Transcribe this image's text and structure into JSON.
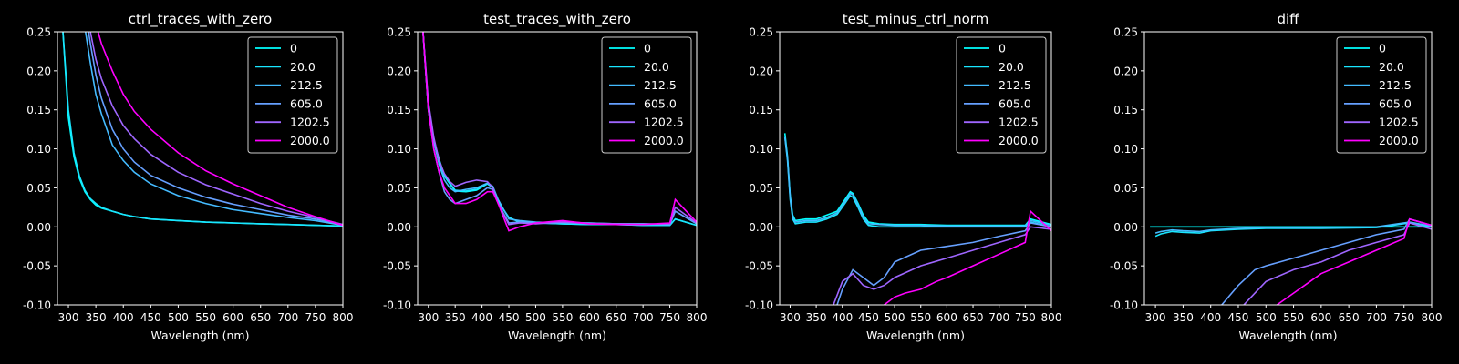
{
  "figure": {
    "background": "#000000",
    "axis_color": "#ffffff",
    "text_color": "#ffffff"
  },
  "legend_entries": [
    "0",
    "20.0",
    "212.5",
    "605.0",
    "1202.5",
    "2000.0"
  ],
  "series_colors": [
    "#00ffff",
    "#19e6ff",
    "#44bbff",
    "#66a0ff",
    "#9f66ff",
    "#ff00ff"
  ],
  "chart_data": [
    {
      "type": "line",
      "title": "ctrl_traces_with_zero",
      "xlabel": "Wavelength (nm)",
      "ylabel": "",
      "xlim": [
        280,
        800
      ],
      "ylim": [
        -0.1,
        0.25
      ],
      "xticks": [
        "300",
        "350",
        "400",
        "450",
        "500",
        "550",
        "600",
        "650",
        "700",
        "750",
        "800"
      ],
      "yticks": [
        "-0.10",
        "-0.05",
        "0.00",
        "0.05",
        "0.10",
        "0.15",
        "0.20",
        "0.25"
      ],
      "legend_placement": "top-right",
      "grid": false,
      "x": [
        290,
        300,
        310,
        320,
        330,
        340,
        350,
        360,
        380,
        400,
        420,
        450,
        500,
        550,
        600,
        650,
        700,
        750,
        800
      ],
      "series": [
        {
          "name": "0",
          "values": [
            0.25,
            0.14,
            0.09,
            0.062,
            0.045,
            0.035,
            0.028,
            0.024,
            0.02,
            0.016,
            0.013,
            0.01,
            0.008,
            0.006,
            0.005,
            0.004,
            0.003,
            0.002,
            0.001
          ]
        },
        {
          "name": "20.0",
          "values": [
            0.25,
            0.15,
            0.095,
            0.065,
            0.047,
            0.036,
            0.03,
            0.025,
            0.02,
            0.016,
            0.013,
            0.01,
            0.008,
            0.006,
            0.005,
            0.004,
            0.003,
            0.002,
            0.001
          ]
        },
        {
          "name": "212.5",
          "values": [
            null,
            null,
            null,
            null,
            0.255,
            0.21,
            0.17,
            0.145,
            0.105,
            0.085,
            0.07,
            0.055,
            0.04,
            0.03,
            0.022,
            0.017,
            0.012,
            0.008,
            0.002
          ]
        },
        {
          "name": "605.0",
          "values": [
            null,
            null,
            null,
            null,
            0.28,
            0.235,
            0.195,
            0.165,
            0.125,
            0.1,
            0.083,
            0.066,
            0.05,
            0.038,
            0.029,
            0.022,
            0.015,
            0.01,
            0.003
          ]
        },
        {
          "name": "1202.5",
          "values": [
            null,
            null,
            null,
            null,
            0.28,
            0.25,
            0.215,
            0.19,
            0.155,
            0.13,
            0.113,
            0.093,
            0.07,
            0.054,
            0.042,
            0.03,
            0.02,
            0.012,
            0.003
          ]
        },
        {
          "name": "2000.0",
          "values": [
            null,
            null,
            null,
            null,
            null,
            null,
            0.26,
            0.235,
            0.2,
            0.17,
            0.148,
            0.125,
            0.095,
            0.072,
            0.055,
            0.04,
            0.025,
            0.013,
            0.002
          ]
        }
      ]
    },
    {
      "type": "line",
      "title": "test_traces_with_zero",
      "xlabel": "Wavelength (nm)",
      "ylabel": "",
      "xlim": [
        280,
        800
      ],
      "ylim": [
        -0.1,
        0.25
      ],
      "xticks": [
        "300",
        "350",
        "400",
        "450",
        "500",
        "550",
        "600",
        "650",
        "700",
        "750",
        "800"
      ],
      "yticks": [
        "-0.10",
        "-0.05",
        "0.00",
        "0.05",
        "0.10",
        "0.15",
        "0.20",
        "0.25"
      ],
      "legend_placement": "top-right",
      "grid": false,
      "x": [
        290,
        300,
        310,
        320,
        330,
        340,
        350,
        370,
        390,
        410,
        420,
        430,
        450,
        470,
        500,
        550,
        600,
        650,
        700,
        750,
        760,
        800
      ],
      "series": [
        {
          "name": "0",
          "values": [
            0.25,
            0.15,
            0.11,
            0.085,
            0.065,
            0.055,
            0.046,
            0.045,
            0.047,
            0.055,
            0.05,
            0.032,
            0.012,
            0.006,
            0.005,
            0.004,
            0.003,
            0.003,
            0.002,
            0.002,
            0.01,
            0.002
          ]
        },
        {
          "name": "20.0",
          "values": [
            0.25,
            0.155,
            0.112,
            0.087,
            0.066,
            0.056,
            0.047,
            0.046,
            0.048,
            0.056,
            0.051,
            0.033,
            0.012,
            0.006,
            0.005,
            0.004,
            0.003,
            0.003,
            0.002,
            0.002,
            0.01,
            0.002
          ]
        },
        {
          "name": "212.5",
          "values": [
            0.25,
            0.15,
            0.11,
            0.08,
            0.06,
            0.05,
            0.045,
            0.048,
            0.05,
            0.056,
            0.052,
            0.035,
            0.01,
            0.008,
            0.006,
            0.005,
            0.005,
            0.004,
            0.004,
            0.003,
            0.02,
            0.004
          ]
        },
        {
          "name": "605.0",
          "values": [
            0.25,
            0.15,
            0.1,
            0.07,
            0.045,
            0.035,
            0.03,
            0.035,
            0.04,
            0.05,
            0.048,
            0.03,
            0.005,
            0.006,
            0.005,
            0.006,
            0.005,
            0.004,
            0.004,
            0.003,
            0.02,
            0.004
          ]
        },
        {
          "name": "1202.5",
          "values": [
            0.25,
            0.16,
            0.115,
            0.085,
            0.068,
            0.058,
            0.052,
            0.057,
            0.06,
            0.058,
            0.05,
            0.03,
            0.003,
            0.005,
            0.004,
            0.006,
            0.004,
            0.004,
            0.003,
            0.004,
            0.025,
            0.005
          ]
        },
        {
          "name": "2000.0",
          "values": [
            0.25,
            0.15,
            0.1,
            0.07,
            0.05,
            0.04,
            0.03,
            0.03,
            0.035,
            0.045,
            0.045,
            0.03,
            -0.005,
            0.0,
            0.005,
            0.008,
            0.004,
            0.003,
            0.003,
            0.005,
            0.035,
            0.006
          ]
        }
      ]
    },
    {
      "type": "line",
      "title": "test_minus_ctrl_norm",
      "xlabel": "Wavelength (nm)",
      "ylabel": "",
      "xlim": [
        280,
        800
      ],
      "ylim": [
        -0.1,
        0.25
      ],
      "xticks": [
        "300",
        "350",
        "400",
        "450",
        "500",
        "550",
        "600",
        "650",
        "700",
        "750",
        "800"
      ],
      "yticks": [
        "-0.10",
        "-0.05",
        "0.00",
        "0.05",
        "0.10",
        "0.15",
        "0.20",
        "0.25"
      ],
      "legend_placement": "top-right",
      "grid": false,
      "series": [
        {
          "name": "0",
          "x": [
            290,
            295,
            300,
            305,
            310,
            330,
            350,
            370,
            390,
            405,
            415,
            420,
            430,
            440,
            450,
            470,
            500,
            550,
            600,
            650,
            700,
            750,
            760,
            800
          ],
          "values": [
            0.12,
            0.09,
            0.04,
            0.015,
            0.008,
            0.01,
            0.01,
            0.015,
            0.02,
            0.035,
            0.045,
            0.043,
            0.03,
            0.015,
            0.006,
            0.004,
            0.003,
            0.003,
            0.002,
            0.002,
            0.002,
            0.002,
            0.01,
            0.003
          ]
        },
        {
          "name": "20.0",
          "x": [
            290,
            295,
            300,
            305,
            310,
            330,
            350,
            370,
            390,
            405,
            415,
            420,
            430,
            440,
            450,
            470,
            500,
            550,
            600,
            650,
            700,
            750,
            760,
            800
          ],
          "values": [
            0.115,
            0.085,
            0.035,
            0.01,
            0.004,
            0.006,
            0.006,
            0.01,
            0.016,
            0.03,
            0.04,
            0.038,
            0.025,
            0.01,
            0.002,
            0.0,
            0.0,
            0.0,
            0.0,
            0.0,
            0.0,
            0.0,
            0.006,
            0.0
          ]
        },
        {
          "name": "212.5",
          "x": [
            290,
            295,
            300,
            305,
            310,
            330,
            350,
            370,
            390,
            405,
            415,
            420,
            430,
            440,
            450,
            470,
            500,
            550,
            600,
            650,
            700,
            750,
            760,
            800
          ],
          "values": [
            0.115,
            0.088,
            0.038,
            0.012,
            0.006,
            0.008,
            0.008,
            0.012,
            0.018,
            0.032,
            0.043,
            0.041,
            0.028,
            0.012,
            0.004,
            0.003,
            0.002,
            0.002,
            0.001,
            0.001,
            0.001,
            0.001,
            0.008,
            0.002
          ]
        },
        {
          "name": "605.0",
          "x": [
            390,
            400,
            420,
            440,
            460,
            480,
            500,
            550,
            600,
            650,
            700,
            750,
            760,
            800
          ],
          "values": [
            -0.1,
            -0.08,
            -0.055,
            -0.065,
            -0.075,
            -0.065,
            -0.045,
            -0.03,
            -0.025,
            -0.02,
            -0.012,
            -0.005,
            0.005,
            0.0
          ]
        },
        {
          "name": "1202.5",
          "x": [
            380,
            400,
            420,
            440,
            460,
            480,
            500,
            550,
            600,
            650,
            700,
            750,
            760,
            800
          ],
          "values": [
            -0.105,
            -0.07,
            -0.06,
            -0.075,
            -0.08,
            -0.075,
            -0.065,
            -0.05,
            -0.04,
            -0.03,
            -0.02,
            -0.01,
            0.0,
            -0.003
          ]
        },
        {
          "name": "2000.0",
          "x": [
            480,
            500,
            520,
            550,
            580,
            600,
            650,
            700,
            750,
            760,
            800
          ],
          "values": [
            -0.1,
            -0.09,
            -0.085,
            -0.08,
            -0.07,
            -0.065,
            -0.05,
            -0.035,
            -0.02,
            0.02,
            -0.005
          ]
        }
      ]
    },
    {
      "type": "line",
      "title": "diff",
      "xlabel": "Wavelength (nm)",
      "ylabel": "",
      "xlim": [
        280,
        800
      ],
      "ylim": [
        -0.1,
        0.25
      ],
      "xticks": [
        "300",
        "350",
        "400",
        "450",
        "500",
        "550",
        "600",
        "650",
        "700",
        "750",
        "800"
      ],
      "yticks": [
        "-0.10",
        "-0.05",
        "0.00",
        "0.05",
        "0.10",
        "0.15",
        "0.20",
        "0.25"
      ],
      "legend_placement": "top-right",
      "grid": false,
      "series": [
        {
          "name": "0",
          "x": [
            290,
            800
          ],
          "values": [
            0.0,
            0.0
          ]
        },
        {
          "name": "20.0",
          "x": [
            300,
            310,
            330,
            350,
            380,
            400,
            450,
            500,
            550,
            600,
            700,
            760,
            800
          ],
          "values": [
            -0.012,
            -0.009,
            -0.006,
            -0.007,
            -0.008,
            -0.005,
            -0.003,
            -0.002,
            -0.002,
            -0.002,
            -0.001,
            0.005,
            0.0
          ]
        },
        {
          "name": "212.5",
          "x": [
            300,
            310,
            330,
            350,
            380,
            400,
            450,
            500,
            550,
            600,
            700,
            760,
            800
          ],
          "values": [
            -0.008,
            -0.006,
            -0.004,
            -0.005,
            -0.006,
            -0.004,
            -0.002,
            -0.001,
            -0.001,
            -0.001,
            0.0,
            0.006,
            0.001
          ]
        },
        {
          "name": "605.0",
          "x": [
            420,
            450,
            480,
            500,
            550,
            600,
            650,
            700,
            750,
            760,
            800
          ],
          "values": [
            -0.1,
            -0.075,
            -0.055,
            -0.05,
            -0.04,
            -0.03,
            -0.02,
            -0.01,
            -0.003,
            0.01,
            0.002
          ]
        },
        {
          "name": "1202.5",
          "x": [
            460,
            480,
            500,
            550,
            600,
            650,
            700,
            750,
            760,
            800
          ],
          "values": [
            -0.1,
            -0.085,
            -0.07,
            -0.055,
            -0.045,
            -0.03,
            -0.02,
            -0.01,
            0.005,
            -0.003
          ]
        },
        {
          "name": "2000.0",
          "x": [
            520,
            550,
            580,
            600,
            650,
            700,
            750,
            760,
            800
          ],
          "values": [
            -0.1,
            -0.085,
            -0.07,
            -0.06,
            -0.045,
            -0.03,
            -0.015,
            0.01,
            0.002
          ]
        }
      ]
    }
  ]
}
